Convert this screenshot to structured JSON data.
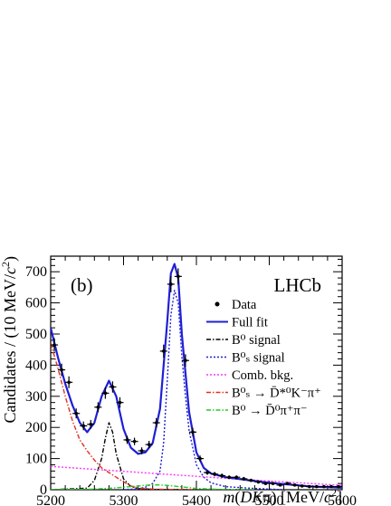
{
  "chart_data": {
    "type": "line",
    "panel_label": "(b)",
    "watermark": "LHCb",
    "xlabel": "m(DKπ) [MeV/c²]",
    "ylabel": "Candidates / (10 MeV/c²)",
    "xlim": [
      5200,
      5600
    ],
    "ylim": [
      0,
      750
    ],
    "x_ticks": [
      5200,
      5300,
      5400,
      5500,
      5600
    ],
    "y_ticks": [
      0,
      100,
      200,
      300,
      400,
      500,
      600,
      700
    ],
    "legend_position": "top-right",
    "legend": [
      {
        "label": "Data",
        "color": "#000000",
        "style": "point"
      },
      {
        "label": "Full fit",
        "color": "#1f1fd6",
        "style": "solid"
      },
      {
        "label": "B⁰ signal",
        "color": "#000000",
        "style": "dashdot"
      },
      {
        "label": "B⁰ₛ signal",
        "color": "#1f1fd6",
        "style": "dotted"
      },
      {
        "label": "Comb. bkg.",
        "color": "#ff33ff",
        "style": "dotted"
      },
      {
        "label": "B⁰ₛ → D̄*⁰K⁻π⁺",
        "color": "#e03020",
        "style": "dashdot"
      },
      {
        "label": "B⁰ → D̄⁰π⁺π⁻",
        "color": "#22cc22",
        "style": "dashdot"
      }
    ],
    "data_points": {
      "x": [
        5205,
        5215,
        5225,
        5235,
        5245,
        5255,
        5265,
        5275,
        5285,
        5295,
        5305,
        5315,
        5325,
        5335,
        5345,
        5355,
        5365,
        5375,
        5385,
        5395,
        5405,
        5415,
        5425,
        5435,
        5445,
        5455,
        5465,
        5475,
        5485,
        5495,
        5505,
        5515,
        5525,
        5535,
        5545,
        5555,
        5565,
        5575,
        5585,
        5595
      ],
      "y": [
        465,
        385,
        345,
        245,
        205,
        210,
        265,
        310,
        330,
        280,
        160,
        155,
        125,
        145,
        215,
        445,
        660,
        685,
        415,
        185,
        100,
        55,
        50,
        45,
        40,
        40,
        35,
        30,
        25,
        20,
        20,
        15,
        20,
        15,
        12,
        10,
        10,
        10,
        10,
        10
      ],
      "yerr": [
        22,
        20,
        19,
        16,
        14,
        14,
        16,
        18,
        18,
        17,
        13,
        12,
        11,
        12,
        15,
        21,
        26,
        26,
        20,
        14,
        10,
        7,
        7,
        7,
        6,
        6,
        6,
        5,
        5,
        4,
        4,
        4,
        4,
        4,
        3,
        3,
        3,
        3,
        3,
        3
      ]
    },
    "series": [
      {
        "name": "Full fit",
        "color": "#1f1fd6",
        "x": [
          5200,
          5210,
          5220,
          5230,
          5240,
          5250,
          5260,
          5270,
          5280,
          5290,
          5300,
          5310,
          5320,
          5330,
          5340,
          5350,
          5360,
          5365,
          5370,
          5375,
          5380,
          5390,
          5400,
          5410,
          5420,
          5440,
          5460,
          5480,
          5500,
          5520,
          5540,
          5560,
          5580,
          5600
        ],
        "y": [
          520,
          425,
          340,
          270,
          215,
          185,
          215,
          300,
          350,
          300,
          195,
          135,
          115,
          120,
          150,
          260,
          540,
          695,
          725,
          680,
          500,
          250,
          120,
          70,
          52,
          40,
          34,
          28,
          22,
          18,
          14,
          10,
          8,
          6
        ]
      },
      {
        "name": "B⁰ signal",
        "color": "#000000",
        "x": [
          5200,
          5250,
          5260,
          5270,
          5275,
          5280,
          5285,
          5290,
          5300,
          5310,
          5320,
          5340,
          5400
        ],
        "y": [
          0,
          5,
          30,
          100,
          165,
          215,
          185,
          115,
          35,
          10,
          4,
          1,
          0
        ]
      },
      {
        "name": "B⁰ₛ signal",
        "color": "#1f1fd6",
        "x": [
          5300,
          5320,
          5330,
          5340,
          5350,
          5355,
          5360,
          5365,
          5370,
          5375,
          5380,
          5385,
          5390,
          5400,
          5410,
          5420,
          5440,
          5480,
          5520
        ],
        "y": [
          0,
          3,
          8,
          20,
          60,
          150,
          350,
          560,
          640,
          600,
          430,
          300,
          190,
          80,
          40,
          22,
          10,
          4,
          0
        ]
      },
      {
        "name": "Comb. bkg.",
        "color": "#ff33ff",
        "x": [
          5200,
          5250,
          5300,
          5350,
          5400,
          5450,
          5500,
          5550,
          5600
        ],
        "y": [
          75,
          67,
          59,
          51,
          43,
          35,
          28,
          21,
          14
        ]
      },
      {
        "name": "B⁰ₛ → D̄*⁰K⁻π⁺",
        "color": "#e03020",
        "x": [
          5200,
          5210,
          5220,
          5230,
          5240,
          5250,
          5260,
          5270,
          5280,
          5290,
          5300,
          5310,
          5320,
          5340,
          5360,
          5400
        ],
        "y": [
          470,
          390,
          300,
          220,
          160,
          125,
          95,
          70,
          55,
          40,
          25,
          12,
          5,
          2,
          1,
          0
        ]
      },
      {
        "name": "B⁰ → D̄⁰π⁺π⁻",
        "color": "#22cc22",
        "x": [
          5200,
          5260,
          5290,
          5320,
          5340,
          5360,
          5380,
          5400,
          5420,
          5450,
          5480
        ],
        "y": [
          0,
          2,
          6,
          12,
          16,
          14,
          9,
          4,
          2,
          0,
          0
        ]
      }
    ]
  }
}
